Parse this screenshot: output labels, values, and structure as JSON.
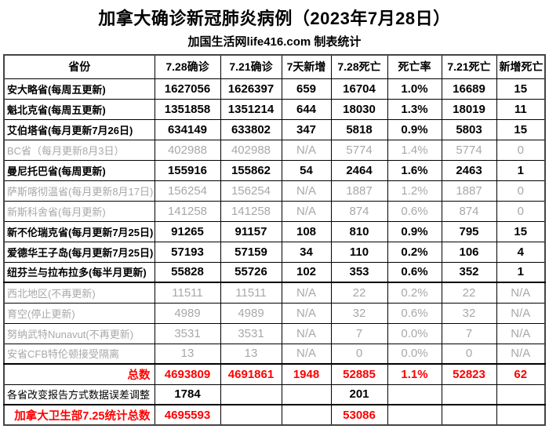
{
  "page": {
    "title": "加拿大确诊新冠肺炎病例（2023年7月28日）",
    "subtitle": "加国生活网life416.com 制表统计"
  },
  "colors": {
    "highlight_red": "#ff0000",
    "inactive_gray": "#a8a8a8",
    "text_black": "#000000"
  },
  "chart_data": {
    "type": "table",
    "title": "加拿大确诊新冠肺炎病例（2023年7月28日）",
    "subtitle": "加国生活网life416.com 制表统计",
    "columns": [
      "省份",
      "7.28确诊",
      "7.21确诊",
      "7天新增",
      "7.28死亡",
      "死亡率",
      "7.21死亡",
      "新增死亡"
    ],
    "rows": [
      {
        "name": "安大略省(每周五更新)",
        "values": [
          "1627056",
          "1626397",
          "659",
          "16704",
          "1.0%",
          "16689",
          "15"
        ],
        "style": "normal"
      },
      {
        "name": "魁北克省(每周五更新)",
        "values": [
          "1351858",
          "1351214",
          "644",
          "18030",
          "1.3%",
          "18019",
          "11"
        ],
        "style": "normal"
      },
      {
        "name": "艾伯塔省(每月更新7月26日)",
        "values": [
          "634149",
          "633802",
          "347",
          "5818",
          "0.9%",
          "5803",
          "15"
        ],
        "style": "normal"
      },
      {
        "name": "BC省（每月更新8月3日）",
        "values": [
          "402988",
          "402988",
          "N/A",
          "5774",
          "1.4%",
          "5774",
          "0"
        ],
        "style": "gray"
      },
      {
        "name": "曼尼托巴省(每周更新)",
        "values": [
          "155916",
          "155862",
          "54",
          "2464",
          "1.6%",
          "2463",
          "1"
        ],
        "style": "normal"
      },
      {
        "name": "萨斯喀彻温省(每月更新8月17日)",
        "values": [
          "156254",
          "156254",
          "N/A",
          "1887",
          "1.2%",
          "1887",
          "0"
        ],
        "style": "gray"
      },
      {
        "name": "新斯科舍省(每月更新)",
        "values": [
          "141258",
          "141258",
          "N/A",
          "874",
          "0.6%",
          "874",
          "0"
        ],
        "style": "gray"
      },
      {
        "name": "新不伦瑞克省(每月更新7月25日)",
        "values": [
          "91265",
          "91157",
          "108",
          "810",
          "0.9%",
          "795",
          "15"
        ],
        "style": "normal"
      },
      {
        "name": "爱德华王子岛(每月更新7月25日)",
        "values": [
          "57193",
          "57159",
          "34",
          "110",
          "0.2%",
          "106",
          "4"
        ],
        "style": "normal"
      },
      {
        "name": "纽芬兰与拉布拉多(每半月更新)",
        "values": [
          "55828",
          "55726",
          "102",
          "353",
          "0.6%",
          "352",
          "1"
        ],
        "style": "normal"
      },
      {
        "name": "西北地区(不再更新)",
        "values": [
          "11511",
          "11511",
          "N/A",
          "22",
          "0.2%",
          "22",
          "N/A"
        ],
        "style": "gray",
        "thick_top": true
      },
      {
        "name": "育空(停止更新)",
        "values": [
          "4989",
          "4989",
          "N/A",
          "32",
          "0.6%",
          "32",
          "N/A"
        ],
        "style": "gray"
      },
      {
        "name": "努纳武特Nunavut(不再更新)",
        "values": [
          "3531",
          "3531",
          "N/A",
          "7",
          "0.0%",
          "7",
          "N/A"
        ],
        "style": "gray"
      },
      {
        "name": "安省CFB特伦顿接受隔离",
        "values": [
          "13",
          "13",
          "N/A",
          "0",
          "0.0%",
          "0",
          "N/A"
        ],
        "style": "gray"
      },
      {
        "name": "总数",
        "values": [
          "4693809",
          "4691861",
          "1948",
          "52885",
          "1.1%",
          "52823",
          "62"
        ],
        "style": "total"
      },
      {
        "name": "各省改变报告方式数据误差调整",
        "values": [
          "1784",
          "",
          "",
          "201",
          "",
          "",
          ""
        ],
        "style": "adjust"
      },
      {
        "name": "加拿大卫生部7.25统计总数",
        "values": [
          "4695593",
          "",
          "",
          "53086",
          "",
          "",
          ""
        ],
        "style": "health"
      }
    ]
  }
}
